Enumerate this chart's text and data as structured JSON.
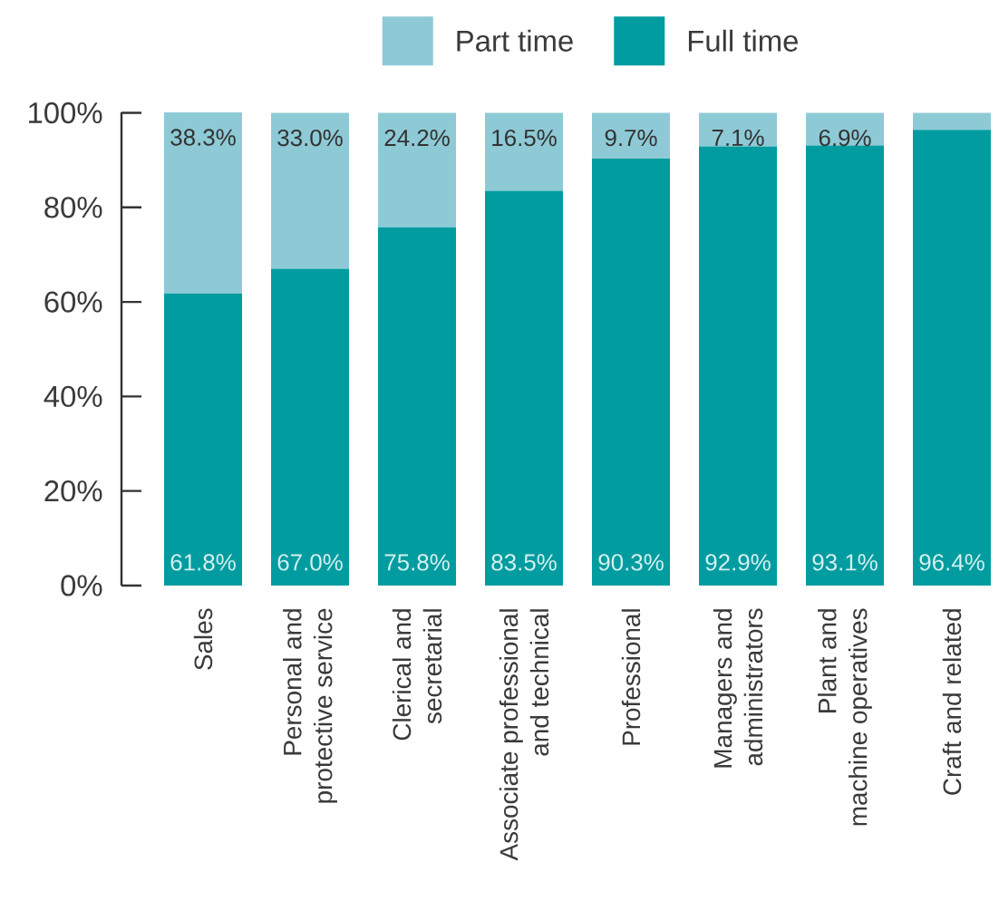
{
  "chart_data": {
    "type": "bar",
    "stacked": true,
    "categories": [
      "Sales",
      "Personal and\nprotective service",
      "Clerical and\nsecretarial",
      "Associate professional\nand technical",
      "Professional",
      "Managers and\nadministrators",
      "Plant and\nmachine operatives",
      "Craft and related"
    ],
    "series": [
      {
        "name": "Full time",
        "color": "#009ca0",
        "values": [
          61.8,
          67.0,
          75.8,
          83.5,
          90.3,
          92.9,
          93.1,
          96.4
        ],
        "value_labels": [
          "61.8%",
          "67.0%",
          "75.8%",
          "83.5%",
          "90.3%",
          "92.9%",
          "93.1%",
          "96.4%"
        ]
      },
      {
        "name": "Part time",
        "color": "#8ecad6",
        "values": [
          38.3,
          33.0,
          24.2,
          16.5,
          9.7,
          7.1,
          6.9,
          3.6
        ],
        "value_labels": [
          "38.3%",
          "33.0%",
          "24.2%",
          "16.5%",
          "9.7%",
          "7.1%",
          "6.9%",
          null
        ]
      }
    ],
    "ylim": [
      0,
      100.1
    ],
    "yticks": [
      {
        "value": 0,
        "label": "0%"
      },
      {
        "value": 20,
        "label": "20%"
      },
      {
        "value": 40,
        "label": "40%"
      },
      {
        "value": 60,
        "label": "60%"
      },
      {
        "value": 80,
        "label": "80%"
      },
      {
        "value": 100,
        "label": "100%"
      }
    ],
    "legend": "top"
  }
}
